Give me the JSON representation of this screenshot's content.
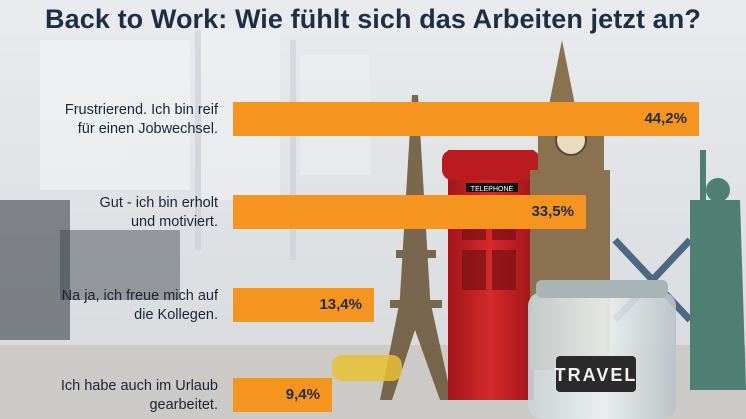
{
  "colors": {
    "bar": "#f5951f",
    "title": "#1e2e45",
    "text": "#1a2536"
  },
  "chart_data": {
    "type": "bar",
    "orientation": "horizontal",
    "title": "Back to Work: Wie fühlt sich das Arbeiten jetzt an?",
    "value_suffix": "%",
    "decimal_separator": ",",
    "categories": [
      "Frustrierend. Ich bin reif für einen Jobwechsel.",
      "Gut - ich bin erholt und motiviert.",
      "Na ja, ich freue mich auf die Kollegen.",
      "Ich habe auch im Urlaub gearbeitet."
    ],
    "category_lines": [
      [
        "Frustrierend. Ich bin reif",
        "für einen Jobwechsel."
      ],
      [
        "Gut - ich bin erholt",
        "und motiviert."
      ],
      [
        "Na ja, ich freue mich auf",
        "die Kollegen."
      ],
      [
        "Ich habe auch im Urlaub",
        "gearbeitet."
      ]
    ],
    "values": [
      44.2,
      33.5,
      13.4,
      9.4
    ],
    "value_labels": [
      "44,2%",
      "33,5%",
      "13,4%",
      "9,4%"
    ],
    "xlim": [
      0,
      45
    ],
    "grid": false,
    "legend": "none"
  }
}
